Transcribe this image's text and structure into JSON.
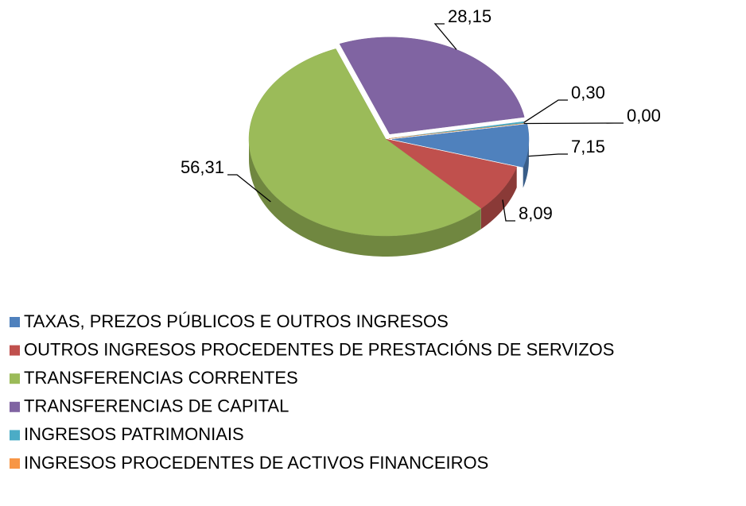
{
  "chart_data": {
    "type": "pie",
    "categories": [
      "TAXAS, PREZOS PÚBLICOS E OUTROS INGRESOS",
      "OUTROS INGRESOS PROCEDENTES DE PRESTACIÓNS DE SERVIZOS",
      "TRANSFERENCIAS CORRENTES",
      "TRANSFERENCIAS DE CAPITAL",
      "INGRESOS PATRIMONIAIS",
      "INGRESOS PROCEDENTES DE ACTIVOS FINANCEIROS"
    ],
    "values": [
      7.15,
      8.09,
      56.31,
      28.15,
      0.3,
      0.0
    ],
    "value_labels": [
      "7,15",
      "8,09",
      "56,31",
      "28,15",
      "0,30",
      "0,00"
    ],
    "colors": [
      "#4f81bd",
      "#c0504d",
      "#9bbb59",
      "#8064a2",
      "#4bacc6",
      "#f79646"
    ],
    "legend": "bottom-left"
  }
}
